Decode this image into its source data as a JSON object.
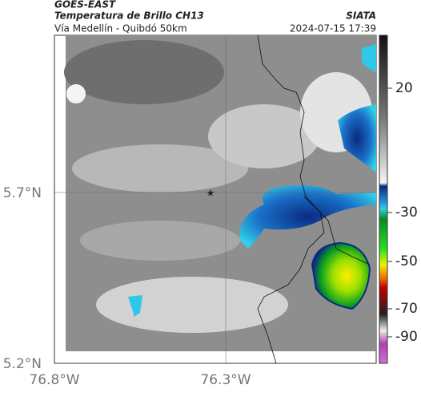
{
  "header": {
    "source": "GOES-EAST",
    "title": "Temperatura de Brillo CH13",
    "org": "SIATA",
    "subtitle": "Vía Medellín - Quibdó 50km",
    "timestamp": "2024-07-15 17:39"
  },
  "map": {
    "lat_labels": [
      "5.7°N",
      "5.2°N"
    ],
    "lon_labels": [
      "76.8°W",
      "76.3°W"
    ]
  },
  "colorbar": {
    "labels": [
      "20",
      "-30",
      "-50",
      "-70",
      "-90"
    ]
  }
}
